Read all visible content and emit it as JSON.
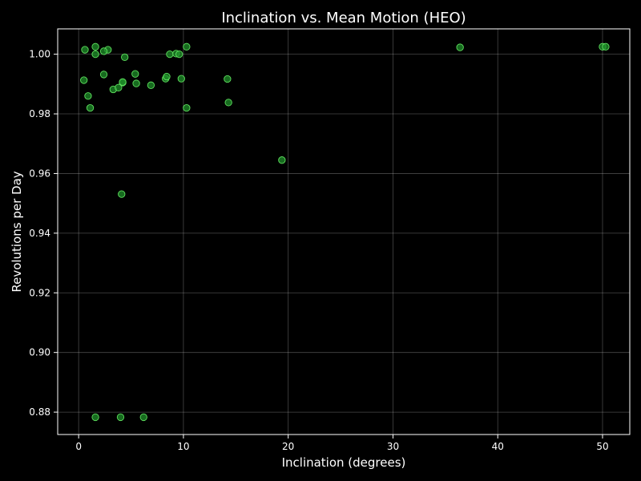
{
  "chart_data": {
    "type": "scatter",
    "title": "Inclination vs. Mean Motion (HEO)",
    "xlabel": "Inclination (degrees)",
    "ylabel": "Revolutions per Day",
    "xlim": [
      -2,
      52.6
    ],
    "ylim": [
      0.8725,
      1.0085
    ],
    "xticks": [
      0,
      10,
      20,
      30,
      40,
      50
    ],
    "yticks": [
      0.88,
      0.9,
      0.92,
      0.94,
      0.96,
      0.98,
      1.0
    ],
    "ytick_labels": [
      "0.88",
      "0.90",
      "0.92",
      "0.94",
      "0.96",
      "0.98",
      "1.00"
    ],
    "grid": true,
    "colors": {
      "background": "#000000",
      "point_fill": "#1f8f2a",
      "point_edge": "#5fe05f",
      "text": "#ffffff"
    },
    "series": [
      {
        "points": [
          [
            0.6,
            1.0015
          ],
          [
            1.6,
            1.0025
          ],
          [
            1.6,
            1.0
          ],
          [
            2.8,
            1.0015
          ],
          [
            2.4,
            1.001
          ],
          [
            4.4,
            0.999
          ],
          [
            10.3,
            1.0025
          ],
          [
            8.7,
            1.0
          ],
          [
            9.3,
            1.0002
          ],
          [
            9.6,
            1.0
          ],
          [
            0.5,
            0.9913
          ],
          [
            0.9,
            0.986
          ],
          [
            1.1,
            0.982
          ],
          [
            2.4,
            0.9932
          ],
          [
            3.3,
            0.9882
          ],
          [
            3.8,
            0.9888
          ],
          [
            4.2,
            0.9905
          ],
          [
            4.2,
            0.9907
          ],
          [
            5.4,
            0.9934
          ],
          [
            5.5,
            0.9902
          ],
          [
            6.9,
            0.9896
          ],
          [
            8.3,
            0.9918
          ],
          [
            8.4,
            0.9925
          ],
          [
            9.8,
            0.9918
          ],
          [
            10.3,
            0.982
          ],
          [
            14.2,
            0.9917
          ],
          [
            14.3,
            0.9838
          ],
          [
            19.4,
            0.9645
          ],
          [
            4.1,
            0.9531
          ],
          [
            36.4,
            1.0023
          ],
          [
            50.0,
            1.0025
          ],
          [
            50.3,
            1.0025
          ],
          [
            1.6,
            0.8783
          ],
          [
            4.0,
            0.8783
          ],
          [
            6.2,
            0.8783
          ]
        ]
      }
    ]
  }
}
